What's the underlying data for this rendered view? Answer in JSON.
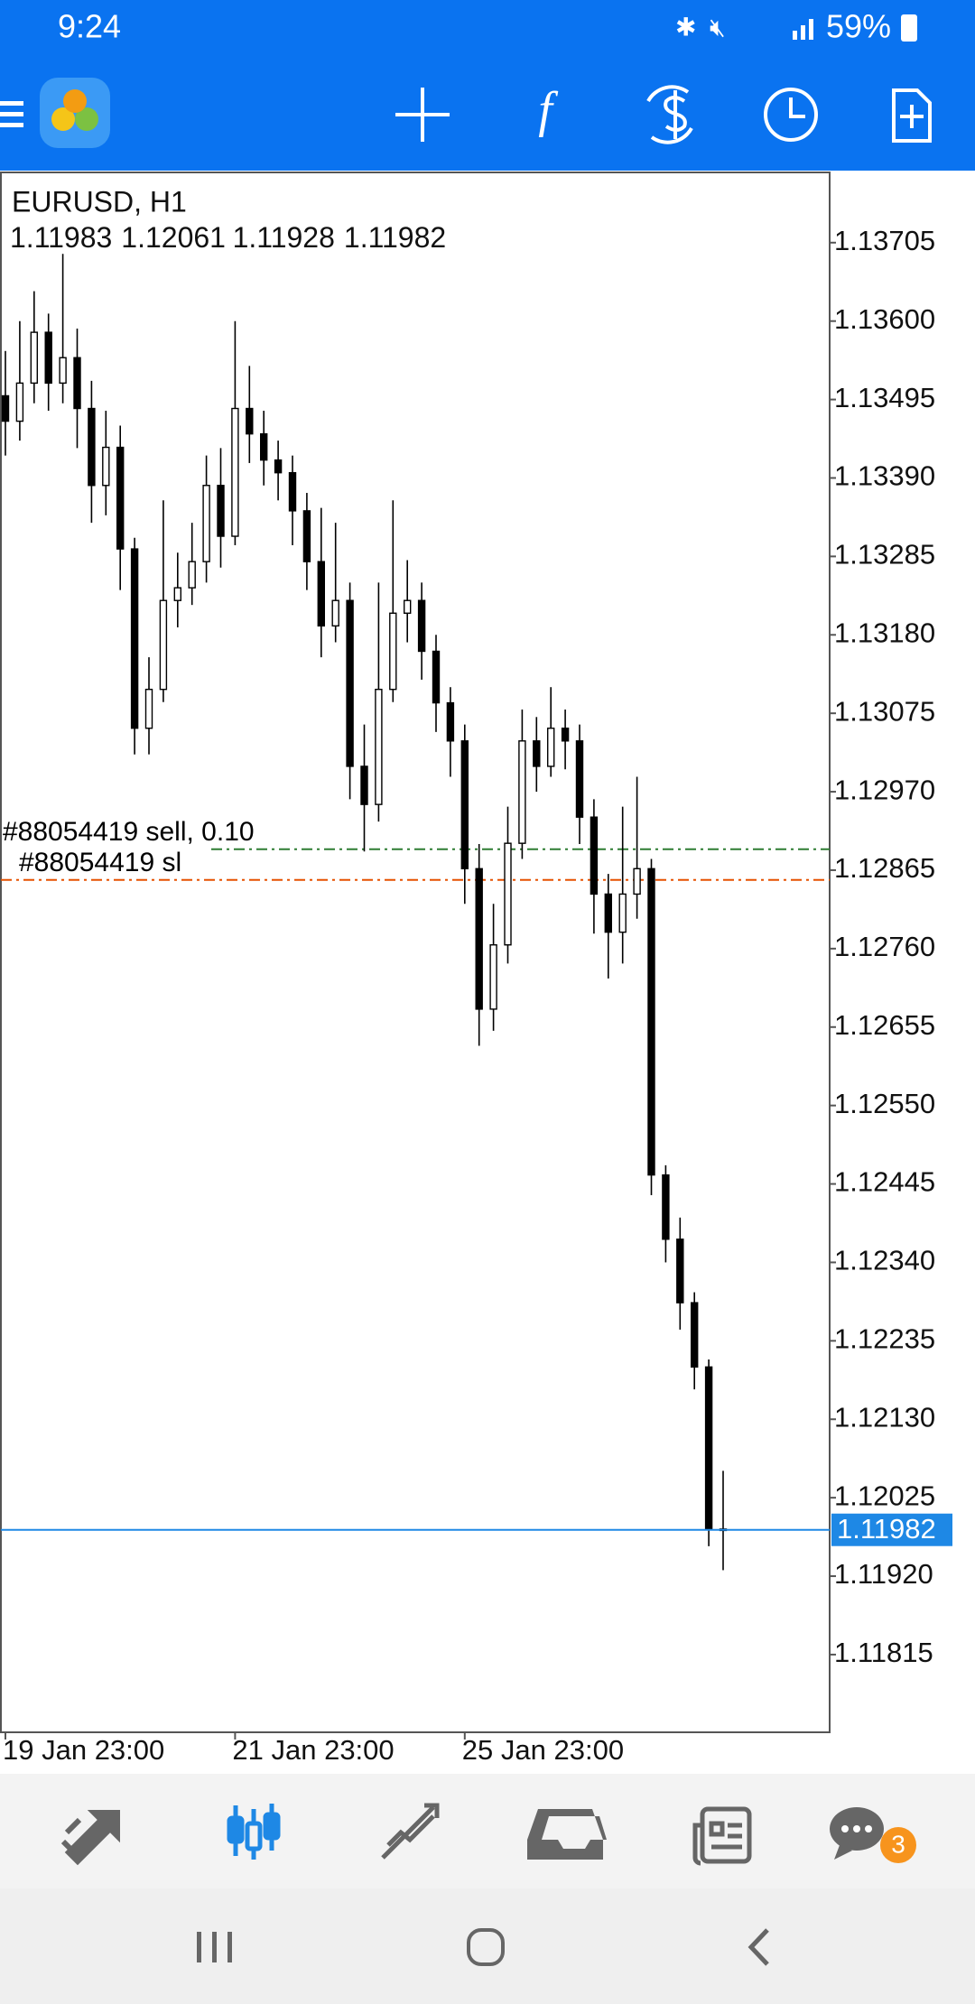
{
  "status_bar": {
    "time": "9:24",
    "battery": "59%"
  },
  "chart_data": {
    "type": "candlestick",
    "title": "EURUSD, H1",
    "categories": [
      "19 Jan 23:00",
      null,
      null,
      null,
      null,
      null,
      null,
      null,
      null,
      null,
      null,
      null,
      null,
      null,
      null,
      null,
      "21 Jan 23:00",
      null,
      null,
      null,
      null,
      null,
      null,
      null,
      null,
      null,
      null,
      null,
      null,
      null,
      null,
      null,
      "25 Jan 23:00",
      null,
      null,
      null,
      null,
      null,
      null,
      null,
      null,
      null,
      null,
      null,
      null,
      null,
      null,
      null,
      null,
      null,
      null
    ],
    "open": [
      1.135,
      1.13466,
      1.13517,
      1.13585,
      1.13517,
      1.13551,
      1.13483,
      1.1338,
      1.13431,
      1.13295,
      1.13055,
      1.13107,
      1.13226,
      1.13243,
      1.13278,
      1.1338,
      1.13312,
      1.13483,
      1.13449,
      1.13414,
      1.13397,
      1.13346,
      1.13278,
      1.13192,
      1.13226,
      1.13004,
      1.12953,
      1.13107,
      1.13209,
      1.13226,
      1.13158,
      1.13089,
      1.13038,
      1.12867,
      1.12679,
      1.12765,
      1.12901,
      1.13038,
      1.13004,
      1.13055,
      1.13038,
      1.12936,
      1.12833,
      1.12782,
      1.12833,
      1.12867,
      1.12457,
      1.12371,
      1.12286,
      1.122,
      1.11983
    ],
    "high": [
      1.1356,
      1.136,
      1.1364,
      1.1361,
      1.1369,
      1.1359,
      1.1352,
      1.1348,
      1.1346,
      1.1331,
      1.1315,
      1.1336,
      1.1329,
      1.1333,
      1.1342,
      1.1343,
      1.136,
      1.1354,
      1.1348,
      1.1344,
      1.1342,
      1.1337,
      1.1335,
      1.1333,
      1.1325,
      1.1306,
      1.1325,
      1.1336,
      1.1328,
      1.1325,
      1.1318,
      1.1311,
      1.1306,
      1.129,
      1.1282,
      1.1295,
      1.1308,
      1.1307,
      1.1311,
      1.1308,
      1.1306,
      1.1296,
      1.1286,
      1.1295,
      1.1299,
      1.1288,
      1.1247,
      1.124,
      1.123,
      1.1221,
      1.12061
    ],
    "low": [
      1.1342,
      1.1344,
      1.1349,
      1.1348,
      1.1349,
      1.1343,
      1.1333,
      1.1334,
      1.1324,
      1.1302,
      1.1302,
      1.1309,
      1.1319,
      1.1322,
      1.1325,
      1.1327,
      1.133,
      1.1341,
      1.1338,
      1.1336,
      1.133,
      1.1324,
      1.1315,
      1.1317,
      1.1296,
      1.1289,
      1.1293,
      1.1309,
      1.1317,
      1.1312,
      1.1305,
      1.1299,
      1.1282,
      1.1263,
      1.1265,
      1.1274,
      1.1288,
      1.1297,
      1.1299,
      1.13,
      1.129,
      1.1278,
      1.1272,
      1.1274,
      1.128,
      1.1243,
      1.1234,
      1.1225,
      1.1217,
      1.1196,
      1.11928
    ],
    "close": [
      1.13466,
      1.13517,
      1.13585,
      1.13517,
      1.13551,
      1.13483,
      1.1338,
      1.13431,
      1.13295,
      1.13055,
      1.13107,
      1.13226,
      1.13243,
      1.13278,
      1.1338,
      1.13312,
      1.13483,
      1.13449,
      1.13414,
      1.13397,
      1.13346,
      1.13278,
      1.13192,
      1.13226,
      1.13004,
      1.12953,
      1.13107,
      1.13209,
      1.13226,
      1.13158,
      1.13089,
      1.13038,
      1.12867,
      1.12679,
      1.12765,
      1.12901,
      1.13038,
      1.13004,
      1.13055,
      1.13038,
      1.12936,
      1.12833,
      1.12782,
      1.12833,
      1.12867,
      1.12457,
      1.12371,
      1.12286,
      1.122,
      1.11983,
      1.11982
    ],
    "ylim": [
      1.11711,
      1.13799
    ],
    "yticks": [
      1.13705,
      {
        "value": 1.136,
        "label": "1.13600"
      },
      1.13495,
      {
        "value": 1.1339,
        "label": "1.13390"
      },
      1.13285,
      {
        "value": 1.1318,
        "label": "1.13180"
      },
      1.13075,
      {
        "value": 1.1297,
        "label": "1.12970"
      },
      1.12865,
      {
        "value": 1.1276,
        "label": "1.12760"
      },
      1.12655,
      {
        "value": 1.1255,
        "label": "1.12550"
      },
      1.12445,
      {
        "value": 1.1234,
        "label": "1.12340"
      },
      1.12235,
      {
        "value": 1.1213,
        "label": "1.12130"
      },
      1.12025,
      {
        "value": 1.1192,
        "label": "1.11920"
      },
      1.11815
    ],
    "bull_color": "#ffffff",
    "bear_color": "#000000",
    "price_line_color": "#1e88e5",
    "orders": [
      {
        "label": "#88054419 sell, 0.10",
        "price": 1.12893,
        "color": "#2e7d32"
      },
      {
        "label": "#88054419 sl",
        "price": 1.12852,
        "color": "#e65100"
      }
    ]
  },
  "bottom_nav": {
    "chat_badge": 3
  }
}
